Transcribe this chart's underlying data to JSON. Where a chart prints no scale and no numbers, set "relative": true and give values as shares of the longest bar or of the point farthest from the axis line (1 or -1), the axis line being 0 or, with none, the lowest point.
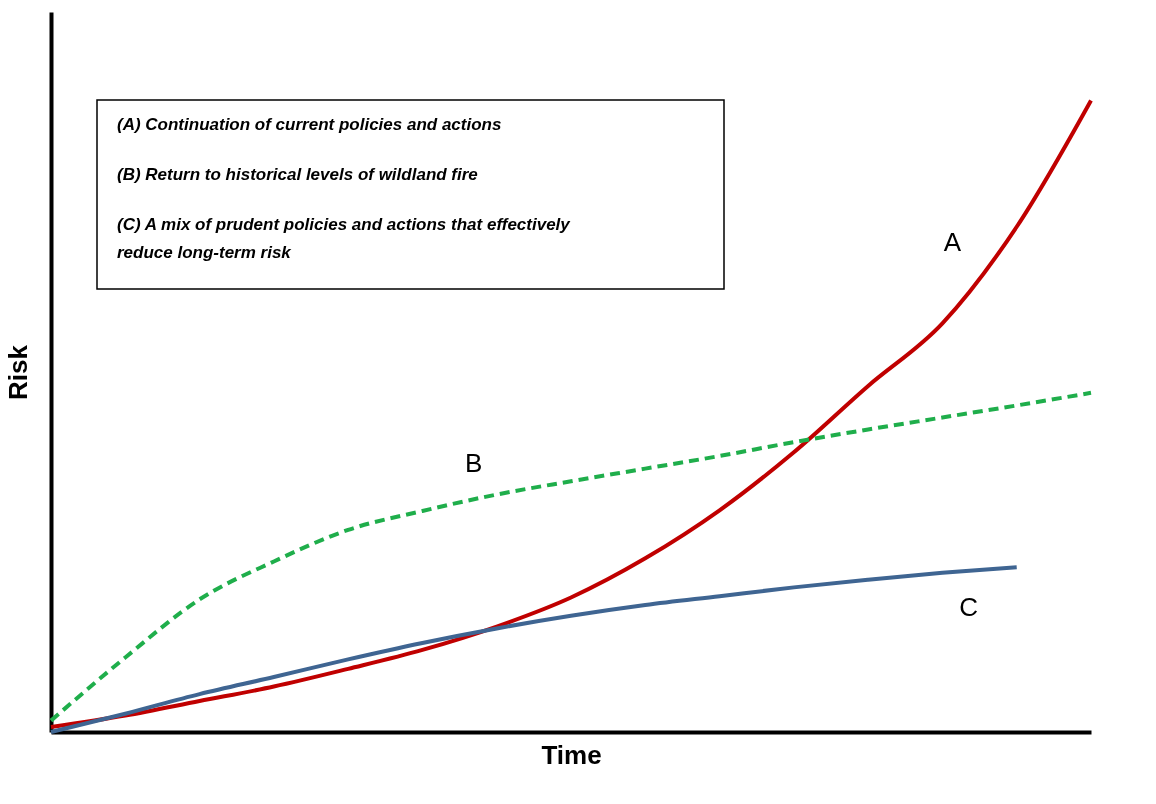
{
  "chart_data": {
    "type": "line",
    "relative": true,
    "xlabel": "Time",
    "ylabel": "Risk",
    "categories": [
      null,
      null,
      null,
      null,
      null,
      null,
      null,
      null,
      null,
      null,
      null,
      null,
      null,
      null,
      null
    ],
    "series": [
      {
        "name": "A",
        "color": "#c00000",
        "line_style": "solid",
        "values": [
          0.008,
          0.026,
          0.049,
          0.072,
          0.1,
          0.13,
          0.167,
          0.213,
          0.275,
          0.351,
          0.443,
          0.548,
          0.647,
          0.8,
          1
        ]
      },
      {
        "name": "B",
        "color": "#1fae4b",
        "line_style": "dashed",
        "values": [
          0.018,
          0.118,
          0.21,
          0.27,
          0.32,
          0.35,
          0.376,
          0.397,
          0.417,
          0.437,
          0.459,
          0.479,
          0.498,
          0.517,
          0.537
        ]
      },
      {
        "name": "C",
        "color": "#3f6592",
        "line_style": "solid",
        "values": [
          0,
          0.029,
          0.06,
          0.087,
          0.115,
          0.141,
          0.164,
          0.184,
          0.201,
          0.215,
          0.229,
          0.241,
          0.252,
          0.261,
          null
        ]
      }
    ],
    "annotations": [
      "(A)  Continuation of current policies and actions",
      "(B)  Return to historical levels of wildland fire",
      "(C)  A mix of prudent policies and actions that effectively reduce long-term risk"
    ],
    "marker": "none",
    "grid": false
  }
}
